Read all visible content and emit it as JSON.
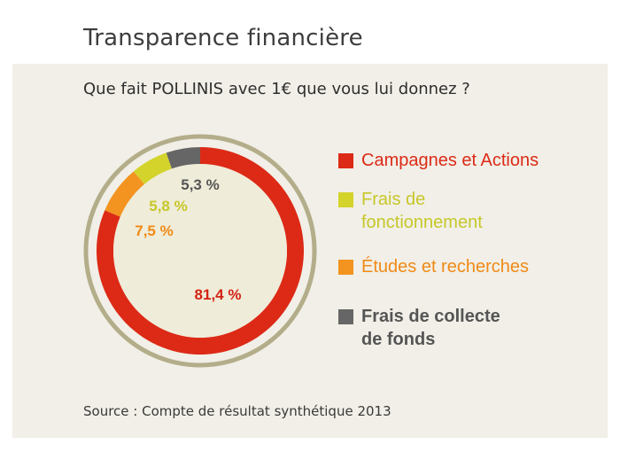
{
  "header": {
    "title": "Transparence financière",
    "subtitle": "Que fait POLLINIS avec 1€ que vous lui donnez ?",
    "source": "Source : Compte de résultat synthétique 2013"
  },
  "chart_data": {
    "type": "pie",
    "title": "Que fait POLLINIS avec 1€ que vous lui donnez ?",
    "unit": "%",
    "series": [
      {
        "name": "Campagnes et Actions",
        "value": 81.4,
        "label": "81,4 %",
        "color": "#dc2a16"
      },
      {
        "name": "Études et recherches",
        "value": 7.5,
        "label": "7,5 %",
        "color": "#f39320"
      },
      {
        "name": "Frais de fonctionnement",
        "value": 5.8,
        "label": "5,8 %",
        "color": "#d3d32b"
      },
      {
        "name": "Frais de collecte de fonds",
        "value": 5.3,
        "label": "5,3 %",
        "color": "#666666"
      }
    ],
    "legend": [
      {
        "lines": [
          "Campagnes et Actions"
        ],
        "color": "#dc2a16",
        "text_color": "#dc2a16"
      },
      {
        "lines": [
          "Frais de",
          "fonctionnement"
        ],
        "color": "#d3d32b",
        "text_color": "#c7c72a"
      },
      {
        "lines": [
          "Études et recherches"
        ],
        "color": "#f39320",
        "text_color": "#f08a16"
      },
      {
        "lines": [
          "Frais de collecte",
          "de fonds"
        ],
        "color": "#666666",
        "text_color": "#555555"
      }
    ],
    "legend_position": "right"
  }
}
